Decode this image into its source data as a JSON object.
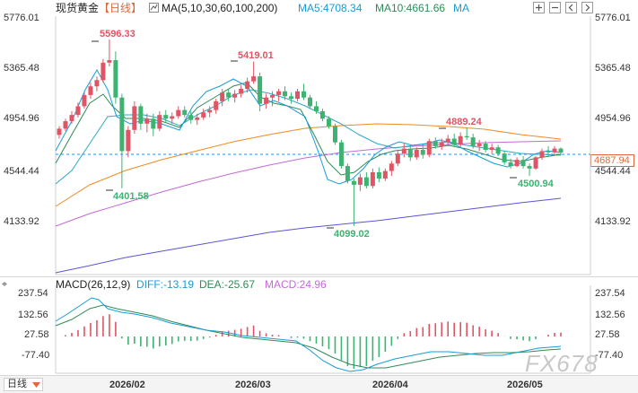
{
  "header": {
    "instrument": "现货黄金",
    "period_tag": "【日线】",
    "ma_setting": "MA(5,10,30,60,100,200)",
    "ma5": "MA5:4708.34",
    "ma10": "MA10:4661.66",
    "ma_more": "MA"
  },
  "price_axis": [
    "5776.01",
    "5365.48",
    "4954.96",
    "4544.44",
    "4133.92"
  ],
  "last_price": "4687.94",
  "annotations": {
    "high1": "5596.33",
    "high2": "5419.01",
    "high3": "4889.24",
    "low1": "4401.58",
    "low2": "4099.02",
    "low3": "4500.94"
  },
  "macd_header": {
    "title": "MACD(26,12,9)",
    "diff": "DIFF:-13.19",
    "dea": "DEA:-25.67",
    "macd": "MACD:24.96"
  },
  "macd_axis": [
    "237.54",
    "132.56",
    "27.58",
    "-77.40"
  ],
  "x_axis": [
    "2026/02",
    "2026/03",
    "2026/04",
    "2026/05"
  ],
  "footer": {
    "period_button": "日线"
  },
  "watermark": "FX678",
  "colors": {
    "up": "#e05566",
    "down": "#3cb371",
    "ma5": "#1a9bd7",
    "ma10": "#2e8b57",
    "ma_orange": "#f08a24",
    "ma_violet": "#c46ad8",
    "ma_blue": "#5a55d8",
    "last_price": "#1e90ff"
  },
  "chart_data": [
    {
      "type": "candlestick",
      "title": "现货黄金 【日线】",
      "x_ticks": [
        "2026/02",
        "2026/03",
        "2026/04",
        "2026/05"
      ],
      "y_ticks": [
        5776.01,
        5365.48,
        4954.96,
        4544.44,
        4133.92
      ],
      "ylim": [
        3750,
        5776.01
      ],
      "last_price": 4687.94,
      "candles": [
        {
          "o": 4830,
          "h": 4900,
          "l": 4800,
          "c": 4880
        },
        {
          "o": 4880,
          "h": 4960,
          "l": 4860,
          "c": 4940
        },
        {
          "o": 4940,
          "h": 5020,
          "l": 4920,
          "c": 4990
        },
        {
          "o": 4990,
          "h": 5090,
          "l": 4970,
          "c": 5060
        },
        {
          "o": 5060,
          "h": 5170,
          "l": 5040,
          "c": 5150
        },
        {
          "o": 5150,
          "h": 5250,
          "l": 5120,
          "c": 5220
        },
        {
          "o": 5220,
          "h": 5300,
          "l": 5180,
          "c": 5270
        },
        {
          "o": 5270,
          "h": 5440,
          "l": 5250,
          "c": 5410
        },
        {
          "o": 5410,
          "h": 5596.33,
          "l": 5380,
          "c": 5430
        },
        {
          "o": 5430,
          "h": 5500,
          "l": 5080,
          "c": 5130
        },
        {
          "o": 5130,
          "h": 5160,
          "l": 4401.58,
          "c": 4700
        },
        {
          "o": 4700,
          "h": 4900,
          "l": 4650,
          "c": 4870
        },
        {
          "o": 4870,
          "h": 5100,
          "l": 4840,
          "c": 5060
        },
        {
          "o": 5060,
          "h": 5080,
          "l": 4870,
          "c": 4920
        },
        {
          "o": 4920,
          "h": 5000,
          "l": 4850,
          "c": 4960
        },
        {
          "o": 4960,
          "h": 5000,
          "l": 4820,
          "c": 4880
        },
        {
          "o": 4880,
          "h": 5020,
          "l": 4860,
          "c": 4990
        },
        {
          "o": 4990,
          "h": 5030,
          "l": 4930,
          "c": 4960
        },
        {
          "o": 4960,
          "h": 5010,
          "l": 4920,
          "c": 4980
        },
        {
          "o": 4980,
          "h": 5060,
          "l": 4960,
          "c": 5030
        },
        {
          "o": 5030,
          "h": 5060,
          "l": 4970,
          "c": 4990
        },
        {
          "o": 4990,
          "h": 5020,
          "l": 4920,
          "c": 4950
        },
        {
          "o": 4950,
          "h": 5000,
          "l": 4910,
          "c": 4970
        },
        {
          "o": 4970,
          "h": 5040,
          "l": 4950,
          "c": 5010
        },
        {
          "o": 5010,
          "h": 5060,
          "l": 4970,
          "c": 5030
        },
        {
          "o": 5030,
          "h": 5120,
          "l": 5000,
          "c": 5100
        },
        {
          "o": 5100,
          "h": 5200,
          "l": 5060,
          "c": 5170
        },
        {
          "o": 5170,
          "h": 5200,
          "l": 5100,
          "c": 5130
        },
        {
          "o": 5130,
          "h": 5190,
          "l": 5090,
          "c": 5160
        },
        {
          "o": 5160,
          "h": 5230,
          "l": 5130,
          "c": 5200
        },
        {
          "o": 5200,
          "h": 5290,
          "l": 5170,
          "c": 5260
        },
        {
          "o": 5260,
          "h": 5419.01,
          "l": 5240,
          "c": 5300
        },
        {
          "o": 5300,
          "h": 5330,
          "l": 5020,
          "c": 5080
        },
        {
          "o": 5080,
          "h": 5160,
          "l": 5040,
          "c": 5130
        },
        {
          "o": 5130,
          "h": 5180,
          "l": 5060,
          "c": 5150
        },
        {
          "o": 5150,
          "h": 5200,
          "l": 5100,
          "c": 5180
        },
        {
          "o": 5180,
          "h": 5220,
          "l": 5110,
          "c": 5140
        },
        {
          "o": 5140,
          "h": 5170,
          "l": 5080,
          "c": 5120
        },
        {
          "o": 5120,
          "h": 5200,
          "l": 5100,
          "c": 5180
        },
        {
          "o": 5180,
          "h": 5240,
          "l": 5110,
          "c": 5130
        },
        {
          "o": 5130,
          "h": 5150,
          "l": 5040,
          "c": 5060
        },
        {
          "o": 5060,
          "h": 5100,
          "l": 5000,
          "c": 5020
        },
        {
          "o": 5020,
          "h": 5040,
          "l": 4940,
          "c": 4960
        },
        {
          "o": 4960,
          "h": 4980,
          "l": 4880,
          "c": 4900
        },
        {
          "o": 4900,
          "h": 4920,
          "l": 4750,
          "c": 4770
        },
        {
          "o": 4770,
          "h": 4790,
          "l": 4560,
          "c": 4580
        },
        {
          "o": 4580,
          "h": 4600,
          "l": 4440,
          "c": 4460
        },
        {
          "o": 4460,
          "h": 4480,
          "l": 4099.02,
          "c": 4430
        },
        {
          "o": 4430,
          "h": 4520,
          "l": 4380,
          "c": 4490
        },
        {
          "o": 4490,
          "h": 4530,
          "l": 4400,
          "c": 4420
        },
        {
          "o": 4420,
          "h": 4560,
          "l": 4400,
          "c": 4530
        },
        {
          "o": 4530,
          "h": 4570,
          "l": 4450,
          "c": 4480
        },
        {
          "o": 4480,
          "h": 4560,
          "l": 4460,
          "c": 4540
        },
        {
          "o": 4540,
          "h": 4620,
          "l": 4500,
          "c": 4600
        },
        {
          "o": 4600,
          "h": 4700,
          "l": 4580,
          "c": 4680
        },
        {
          "o": 4680,
          "h": 4760,
          "l": 4650,
          "c": 4720
        },
        {
          "o": 4720,
          "h": 4740,
          "l": 4620,
          "c": 4650
        },
        {
          "o": 4650,
          "h": 4730,
          "l": 4630,
          "c": 4710
        },
        {
          "o": 4710,
          "h": 4750,
          "l": 4640,
          "c": 4670
        },
        {
          "o": 4670,
          "h": 4800,
          "l": 4650,
          "c": 4780
        },
        {
          "o": 4780,
          "h": 4810,
          "l": 4720,
          "c": 4740
        },
        {
          "o": 4740,
          "h": 4800,
          "l": 4710,
          "c": 4770
        },
        {
          "o": 4770,
          "h": 4830,
          "l": 4740,
          "c": 4800
        },
        {
          "o": 4800,
          "h": 4840,
          "l": 4730,
          "c": 4750
        },
        {
          "o": 4750,
          "h": 4850,
          "l": 4730,
          "c": 4820
        },
        {
          "o": 4820,
          "h": 4889.24,
          "l": 4790,
          "c": 4810
        },
        {
          "o": 4810,
          "h": 4840,
          "l": 4720,
          "c": 4740
        },
        {
          "o": 4740,
          "h": 4790,
          "l": 4700,
          "c": 4760
        },
        {
          "o": 4760,
          "h": 4780,
          "l": 4690,
          "c": 4710
        },
        {
          "o": 4710,
          "h": 4760,
          "l": 4680,
          "c": 4730
        },
        {
          "o": 4730,
          "h": 4750,
          "l": 4660,
          "c": 4680
        },
        {
          "o": 4680,
          "h": 4700,
          "l": 4590,
          "c": 4610
        },
        {
          "o": 4610,
          "h": 4640,
          "l": 4560,
          "c": 4580
        },
        {
          "o": 4580,
          "h": 4650,
          "l": 4570,
          "c": 4630
        },
        {
          "o": 4630,
          "h": 4660,
          "l": 4560,
          "c": 4580
        },
        {
          "o": 4580,
          "h": 4600,
          "l": 4500.94,
          "c": 4560
        },
        {
          "o": 4560,
          "h": 4660,
          "l": 4550,
          "c": 4650
        },
        {
          "o": 4650,
          "h": 4720,
          "l": 4630,
          "c": 4700
        },
        {
          "o": 4700,
          "h": 4740,
          "l": 4660,
          "c": 4690
        },
        {
          "o": 4690,
          "h": 4740,
          "l": 4670,
          "c": 4720
        },
        {
          "o": 4720,
          "h": 4730,
          "l": 4670,
          "c": 4688
        }
      ]
    },
    {
      "type": "bar",
      "title": "MACD(26,12,9)",
      "y_ticks": [
        237.54,
        132.56,
        27.58,
        -77.4
      ],
      "ylim": [
        -150,
        300
      ],
      "series": [
        {
          "name": "DIFF",
          "last": -13.19
        },
        {
          "name": "DEA",
          "last": -25.67
        },
        {
          "name": "MACD",
          "last": 24.96
        }
      ]
    }
  ]
}
